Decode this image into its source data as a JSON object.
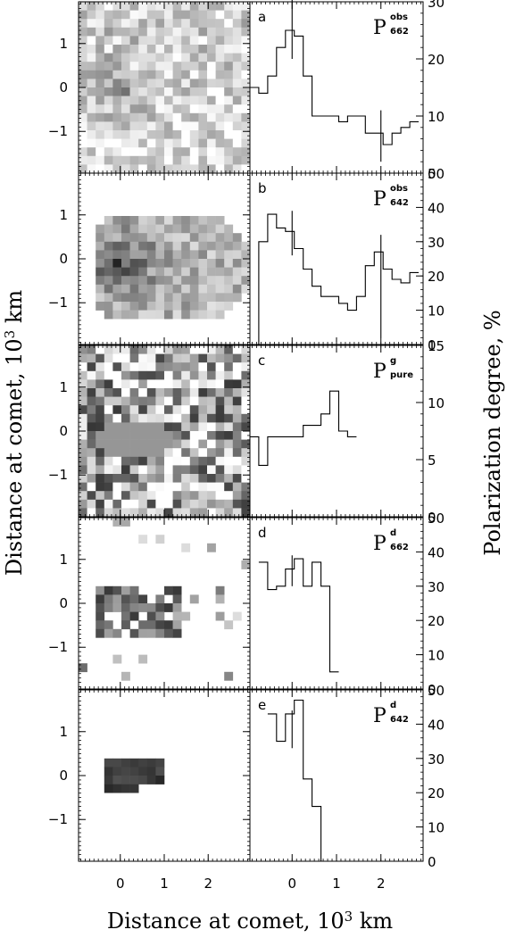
{
  "figure": {
    "xlabel_prefix": "Distance at comet, 10",
    "xlabel_exp": "3",
    "xlabel_suffix": " km",
    "ylabel_left_prefix": "Distance at comet, 10",
    "ylabel_left_exp": "3",
    "ylabel_left_suffix": " km",
    "ylabel_right": "Polarization degree, %"
  },
  "chart_data": [
    {
      "type": "heatmap",
      "panel": "a",
      "label": "P",
      "sup": "obs",
      "sub": "662",
      "xlim": [
        -0.95,
        2.95
      ],
      "ylim": [
        -1.95,
        1.95
      ],
      "grid": false
    },
    {
      "type": "line",
      "panel": "a",
      "xticks": [
        "0",
        "1",
        "2"
      ],
      "xtick_values": [
        0,
        1,
        2
      ],
      "yticks": [
        "0",
        "10",
        "20",
        "30"
      ],
      "ytick_values": [
        0,
        10,
        20,
        30
      ],
      "ylim": [
        0,
        30
      ],
      "xlim": [
        -0.95,
        2.95
      ],
      "step": {
        "x": [
          -0.85,
          -0.65,
          -0.45,
          -0.25,
          -0.05,
          0.15,
          0.35,
          0.55,
          0.75,
          0.95,
          1.15,
          1.35,
          1.55,
          1.75,
          1.95,
          2.15,
          2.35,
          2.55,
          2.75
        ],
        "y": [
          15,
          14,
          17,
          22,
          25,
          24,
          17,
          10,
          10,
          10,
          9,
          10,
          10,
          7,
          7,
          5,
          7,
          8,
          9
        ]
      },
      "error_bars": [
        {
          "x": 0,
          "y": 26,
          "low": 20,
          "high": 31
        },
        {
          "x": 2,
          "y": 7,
          "low": 2,
          "high": 11
        }
      ]
    },
    {
      "type": "heatmap",
      "panel": "b",
      "label": "P",
      "sup": "obs",
      "sub": "642",
      "xlim": [
        -0.95,
        2.95
      ],
      "ylim": [
        -1.95,
        1.95
      ],
      "grid": false
    },
    {
      "type": "line",
      "panel": "b",
      "yticks": [
        "0",
        "10",
        "20",
        "30",
        "40",
        "50"
      ],
      "ytick_values": [
        0,
        10,
        20,
        30,
        40,
        50
      ],
      "ylim": [
        0,
        50
      ],
      "xlim": [
        -0.95,
        2.95
      ],
      "step": {
        "x": [
          -0.85,
          -0.65,
          -0.45,
          -0.25,
          -0.05,
          0.15,
          0.35,
          0.55,
          0.75,
          0.95,
          1.15,
          1.35,
          1.55,
          1.75,
          1.95,
          2.15,
          2.35,
          2.55,
          2.75
        ],
        "y": [
          0,
          30,
          38,
          34,
          33,
          28,
          22,
          17,
          14,
          14,
          12,
          10,
          14,
          23,
          27,
          22,
          19,
          18,
          21
        ]
      },
      "error_bars": [
        {
          "x": 0,
          "y": 35,
          "low": 26,
          "high": 39
        },
        {
          "x": 2,
          "y": 17,
          "low": 2,
          "high": 32
        }
      ]
    },
    {
      "type": "heatmap",
      "panel": "c",
      "label": "P",
      "sup": "g",
      "sub": "pure",
      "xlim": [
        -0.95,
        2.95
      ],
      "ylim": [
        -1.95,
        1.95
      ],
      "grid": false
    },
    {
      "type": "line",
      "panel": "c",
      "yticks": [
        "0",
        "5",
        "10",
        "15"
      ],
      "ytick_values": [
        0,
        5,
        10,
        15
      ],
      "ylim": [
        0,
        15
      ],
      "xlim": [
        -0.95,
        2.95
      ],
      "step": {
        "x": [
          -0.85,
          -0.65,
          -0.45,
          -0.25,
          -0.05,
          0.15,
          0.35,
          0.55,
          0.75,
          0.95,
          1.15,
          1.35
        ],
        "y": [
          7,
          4.5,
          7,
          7,
          7,
          7,
          8,
          8,
          9,
          11,
          7.5,
          7
        ]
      },
      "error_bars": []
    },
    {
      "type": "heatmap",
      "panel": "d",
      "label": "P",
      "sup": "d",
      "sub": "662",
      "xlim": [
        -0.95,
        2.95
      ],
      "ylim": [
        -1.95,
        1.95
      ],
      "grid": false
    },
    {
      "type": "line",
      "panel": "d",
      "yticks": [
        "0",
        "10",
        "20",
        "30",
        "40",
        "50"
      ],
      "ytick_values": [
        0,
        10,
        20,
        30,
        40,
        50
      ],
      "ylim": [
        0,
        50
      ],
      "xlim": [
        -0.95,
        2.95
      ],
      "step": {
        "x": [
          -0.65,
          -0.45,
          -0.25,
          -0.05,
          0.15,
          0.35,
          0.55,
          0.75,
          0.95
        ],
        "y": [
          37,
          29,
          30,
          35,
          38,
          30,
          37,
          30,
          5
        ]
      },
      "error_bars": [
        {
          "x": 0,
          "y": 35,
          "low": 30,
          "high": 39
        }
      ]
    },
    {
      "type": "heatmap",
      "panel": "e",
      "label": "P",
      "sup": "d",
      "sub": "642",
      "xlim": [
        -0.95,
        2.95
      ],
      "ylim": [
        -1.95,
        1.95
      ],
      "grid": false
    },
    {
      "type": "line",
      "panel": "e",
      "yticks": [
        "0",
        "10",
        "20",
        "30",
        "40",
        "50"
      ],
      "ytick_values": [
        0,
        10,
        20,
        30,
        40,
        50
      ],
      "ylim": [
        0,
        50
      ],
      "xlim": [
        -0.95,
        2.95
      ],
      "step": {
        "x": [
          -0.45,
          -0.25,
          -0.05,
          0.15,
          0.35,
          0.55,
          0.75
        ],
        "y": [
          43,
          35,
          43,
          47,
          24,
          16,
          0
        ]
      },
      "error_bars": [
        {
          "x": 0,
          "y": 38,
          "low": 33,
          "high": 44
        }
      ]
    }
  ]
}
